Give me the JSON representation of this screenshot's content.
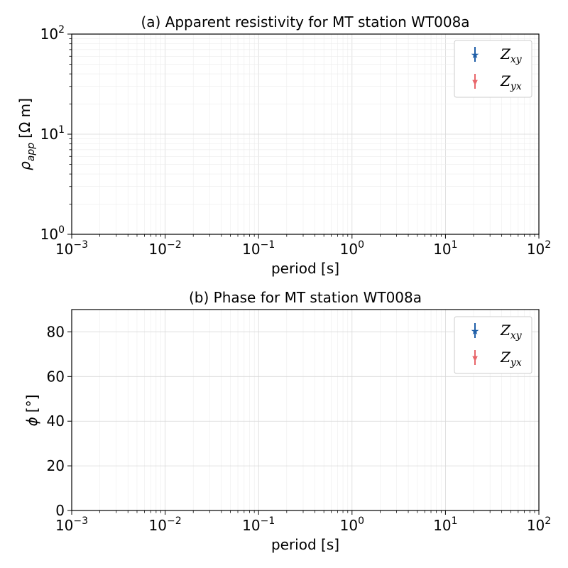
{
  "chart_data": [
    {
      "type": "scatter",
      "title": "(a) Apparent resistivity for MT station WT008a",
      "xlabel": "period [s]",
      "ylabel_symbol": "ρ",
      "ylabel_sub": "app",
      "ylabel_unit": "[Ω m]",
      "xscale": "log",
      "yscale": "log",
      "xlim": [
        0.001,
        100
      ],
      "ylim": [
        1,
        100
      ],
      "x_ticks": [
        {
          "base": "10",
          "exp": "−3"
        },
        {
          "base": "10",
          "exp": "−2"
        },
        {
          "base": "10",
          "exp": "−1"
        },
        {
          "base": "10",
          "exp": "0"
        },
        {
          "base": "10",
          "exp": "1"
        },
        {
          "base": "10",
          "exp": "2"
        }
      ],
      "y_ticks": [
        {
          "base": "10",
          "exp": "0"
        },
        {
          "base": "10",
          "exp": "1"
        },
        {
          "base": "10",
          "exp": "2"
        }
      ],
      "grid": true,
      "legend_position": "top-right",
      "series": [
        {
          "name": "Z",
          "sub": "xy",
          "color": "#1f5fa8",
          "marker": "star",
          "x": [],
          "y": []
        },
        {
          "name": "Z",
          "sub": "yx",
          "color": "#e8666a",
          "marker": "triangle-down",
          "x": [],
          "y": []
        }
      ]
    },
    {
      "type": "scatter",
      "title": "(b) Phase for MT station WT008a",
      "xlabel": "period [s]",
      "ylabel_symbol": "ϕ",
      "ylabel_unit": "[°]",
      "xscale": "log",
      "yscale": "linear",
      "xlim": [
        0.001,
        100
      ],
      "ylim": [
        0,
        90
      ],
      "x_ticks": [
        {
          "base": "10",
          "exp": "−3"
        },
        {
          "base": "10",
          "exp": "−2"
        },
        {
          "base": "10",
          "exp": "−1"
        },
        {
          "base": "10",
          "exp": "0"
        },
        {
          "base": "10",
          "exp": "1"
        },
        {
          "base": "10",
          "exp": "2"
        }
      ],
      "y_ticks": [
        "0",
        "20",
        "40",
        "60",
        "80"
      ],
      "y_tick_values": [
        0,
        20,
        40,
        60,
        80
      ],
      "grid": true,
      "legend_position": "top-right",
      "series": [
        {
          "name": "Z",
          "sub": "xy",
          "color": "#1f5fa8",
          "marker": "star",
          "x": [],
          "y": []
        },
        {
          "name": "Z",
          "sub": "yx",
          "color": "#e8666a",
          "marker": "triangle-down",
          "x": [],
          "y": []
        }
      ]
    }
  ]
}
